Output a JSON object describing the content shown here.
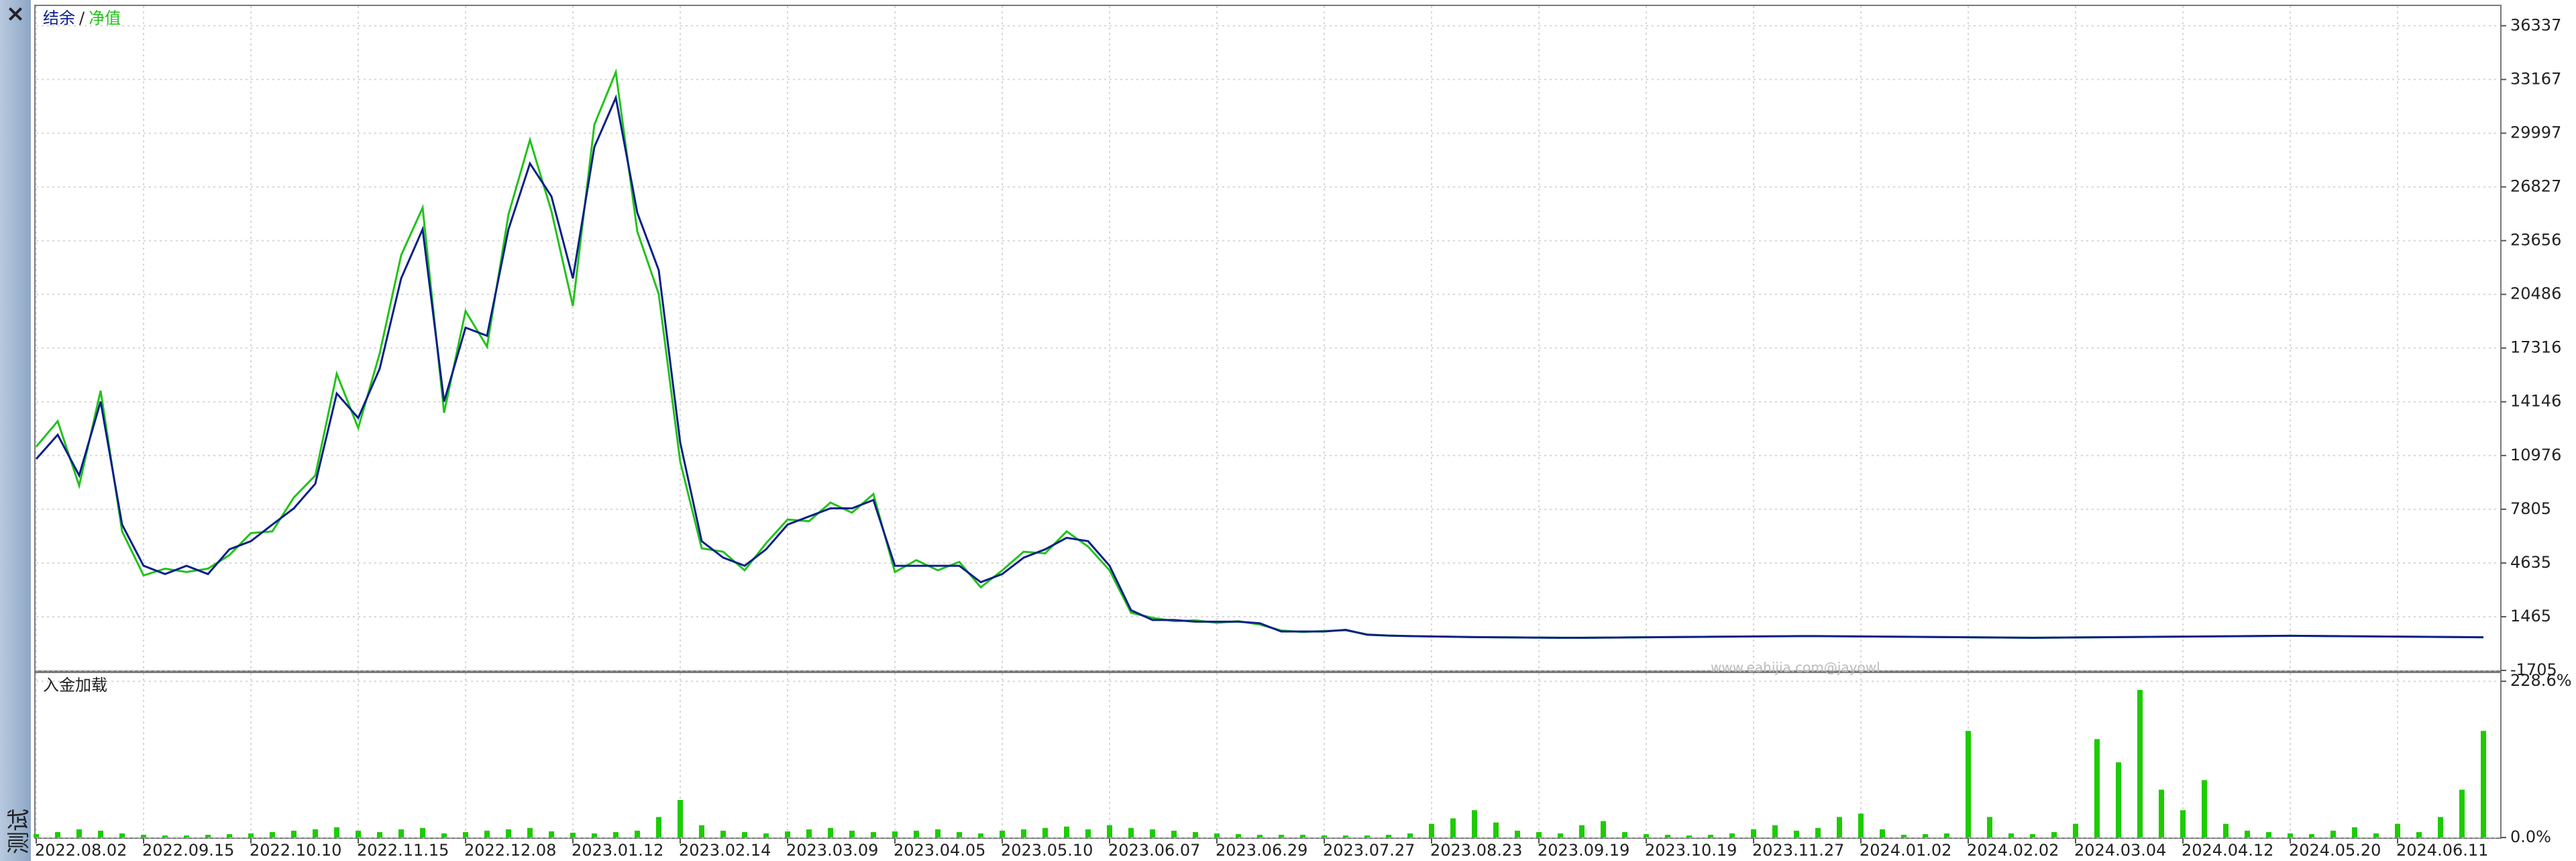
{
  "close_button": "×",
  "sidebar_label": "测试",
  "watermark": "www.eahijia.com@jayowl",
  "chart_data": [
    {
      "type": "line",
      "legend_separator": "/",
      "series": [
        {
          "name": "结余",
          "color": "#0b1f8a",
          "values": [
            10770,
            12200,
            9800,
            14160,
            6900,
            4470,
            3980,
            4470,
            3980,
            5440,
            5920,
            6900,
            7860,
            9310,
            14640,
            13190,
            16100,
            21430,
            24330,
            14160,
            18520,
            18040,
            24330,
            28210,
            26270,
            21430,
            29180,
            32090,
            25300,
            21910,
            11740,
            5920,
            4950,
            4470,
            5440,
            6900,
            7380,
            7860,
            7860,
            8350,
            4470,
            4470,
            4470,
            4470,
            3500,
            3980,
            4950,
            5440,
            6120,
            5920,
            4470,
            1850,
            1270,
            1270,
            1170,
            1170,
            1170,
            1080,
            590,
            590,
            590,
            690,
            400,
            350,
            320,
            300,
            280,
            260,
            250,
            240,
            230,
            220,
            220,
            230,
            240,
            250,
            260,
            270,
            280,
            290,
            300,
            310,
            320,
            320,
            310,
            300,
            290,
            280,
            270,
            260,
            250,
            240,
            230,
            220,
            230,
            240,
            250,
            260,
            270,
            280,
            290,
            300,
            310,
            320,
            330,
            340,
            330,
            320,
            310,
            300,
            290,
            280,
            270,
            260,
            250
          ]
        },
        {
          "name": "净值",
          "color": "#22c31a",
          "values": [
            11500,
            13000,
            9200,
            14800,
            6500,
            3900,
            4300,
            4100,
            4300,
            5100,
            6400,
            6500,
            8500,
            9800,
            15800,
            12600,
            17000,
            22800,
            25600,
            13500,
            19500,
            17400,
            25200,
            29600,
            25400,
            19800,
            30500,
            33600,
            24200,
            20500,
            10600,
            5500,
            5300,
            4200,
            5800,
            7200,
            7100,
            8200,
            7600,
            8700,
            4100,
            4800,
            4200,
            4700,
            3200,
            4200,
            5300,
            5200,
            6500,
            5600,
            4200,
            1700,
            1400,
            1200,
            1250,
            1100,
            1200,
            1000,
            650,
            560,
            620,
            660,
            420,
            350,
            320,
            300,
            280,
            260,
            250,
            240,
            230,
            220,
            220,
            230,
            240,
            250,
            260,
            270,
            280,
            290,
            300,
            310,
            320,
            320,
            310,
            300,
            290,
            280,
            270,
            260,
            250,
            240,
            230,
            220,
            230,
            240,
            250,
            260,
            270,
            280,
            290,
            300,
            310,
            320,
            330,
            340,
            330,
            320,
            310,
            300,
            290,
            280,
            270,
            260,
            250
          ]
        }
      ],
      "ylim": [
        -1705,
        37500
      ],
      "yticks": [
        -1705,
        1465,
        4635,
        7805,
        10976,
        14146,
        17316,
        20486,
        23656,
        26827,
        29997,
        33167,
        36337
      ],
      "grid": true
    },
    {
      "type": "bar",
      "title": "入金加载",
      "color": "#1ecb00",
      "categories": [
        "2022.08.02",
        null,
        null,
        null,
        null,
        "2022.09.15",
        null,
        null,
        null,
        null,
        "2022.10.10",
        null,
        null,
        null,
        null,
        "2022.11.15",
        null,
        null,
        null,
        null,
        "2022.12.08",
        null,
        null,
        null,
        null,
        "2023.01.12",
        null,
        null,
        null,
        null,
        "2023.02.14",
        null,
        null,
        null,
        null,
        "2023.03.09",
        null,
        null,
        null,
        null,
        "2023.04.05",
        null,
        null,
        null,
        null,
        "2023.05.10",
        null,
        null,
        null,
        null,
        "2023.06.07",
        null,
        null,
        null,
        null,
        "2023.06.29",
        null,
        null,
        null,
        null,
        "2023.07.27",
        null,
        null,
        null,
        null,
        "2023.08.23",
        null,
        null,
        null,
        null,
        "2023.09.19",
        null,
        null,
        null,
        null,
        "2023.10.19",
        null,
        null,
        null,
        null,
        "2023.11.27",
        null,
        null,
        null,
        null,
        "2024.01.02",
        null,
        null,
        null,
        null,
        "2024.02.02",
        null,
        null,
        null,
        null,
        "2024.03.04",
        null,
        null,
        null,
        null,
        "2024.04.12",
        null,
        null,
        null,
        null,
        "2024.05.20",
        null,
        null,
        null,
        null,
        "2024.06.11",
        null,
        null,
        null,
        null
      ],
      "values": [
        5,
        8,
        12,
        10,
        6,
        4,
        3,
        3,
        4,
        5,
        6,
        8,
        10,
        12,
        15,
        10,
        8,
        12,
        14,
        6,
        8,
        10,
        12,
        14,
        9,
        7,
        6,
        8,
        10,
        30,
        55,
        18,
        10,
        8,
        6,
        9,
        12,
        14,
        10,
        8,
        9,
        10,
        12,
        8,
        6,
        10,
        12,
        14,
        16,
        12,
        18,
        14,
        12,
        10,
        8,
        6,
        5,
        4,
        4,
        4,
        3,
        3,
        3,
        4,
        6,
        20,
        28,
        40,
        22,
        10,
        8,
        6,
        18,
        24,
        8,
        5,
        4,
        3,
        4,
        6,
        12,
        18,
        10,
        14,
        30,
        35,
        12,
        4,
        5,
        6,
        156,
        30,
        6,
        5,
        8,
        20,
        144,
        110,
        216,
        70,
        40,
        84,
        20,
        10,
        8,
        6,
        5,
        10,
        15,
        6,
        20,
        8,
        30,
        70,
        156
      ],
      "ylim": [
        0,
        240.6
      ],
      "yticks": [
        {
          "value": 0,
          "label": "0.0%"
        },
        {
          "value": 228.6,
          "label": "228.6%"
        }
      ],
      "grid": true
    }
  ]
}
